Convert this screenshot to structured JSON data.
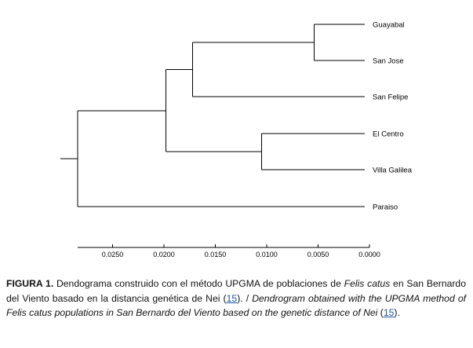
{
  "chart_data": {
    "type": "dendrogram",
    "method": "UPGMA",
    "leaves": [
      "Guayabal",
      "San Jose",
      "San Felipe",
      "El Centro",
      "Villa Galilea",
      "Paraiso"
    ],
    "merges": [
      {
        "children": [
          "Guayabal",
          "San Jose"
        ],
        "height": 0.0054
      },
      {
        "children": [
          "El Centro",
          "Villa Galilea"
        ],
        "height": 0.0105
      },
      {
        "children": [
          "Guayabal+San Jose",
          "San Felipe"
        ],
        "height": 0.0172
      },
      {
        "children": [
          "Guayabal+San Jose+San Felipe",
          "El Centro+Villa Galilea"
        ],
        "height": 0.0198
      },
      {
        "children": [
          "all-but-Paraiso",
          "Paraiso"
        ],
        "height": 0.0284
      }
    ],
    "x_ticks": [
      "0.0250",
      "0.0200",
      "0.0150",
      "0.0100",
      "0.0050",
      "0.0000"
    ],
    "xlim": [
      0.0284,
      0.0
    ],
    "grid": false
  },
  "caption": {
    "label": "FIGURA 1.",
    "es_1": " Dendograma construido con el método UPGMA de poblaciones de ",
    "es_species": "Felis catus",
    "es_2": " en San Bernardo del Viento basado en la distancia genética de Nei (",
    "ref1": "15",
    "es_3": "). / ",
    "en": "Dendrogram obtained with the UPGMA method of Felis catus populations in San Bernardo del Viento based on the genetic distance of Nei",
    "en_open": " (",
    "ref2": "15",
    "en_close": ")."
  }
}
